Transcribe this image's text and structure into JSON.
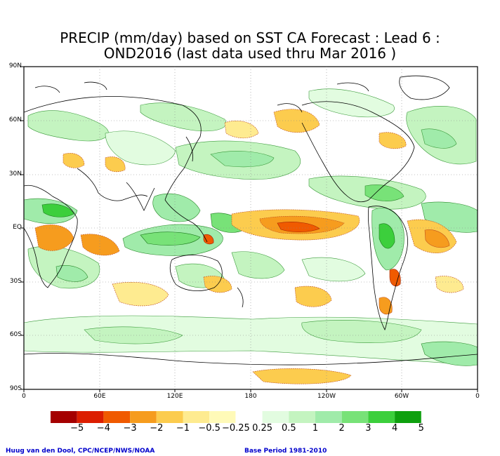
{
  "title": {
    "line1": "PRECIP (mm/day) based on SST CA Forecast : Lead 6 :",
    "line2": "OND2016 (last data used thru Mar 2016 )"
  },
  "map": {
    "lat_labels": [
      "90N",
      "60N",
      "30N",
      "EQ",
      "30S",
      "60S",
      "90S"
    ],
    "lon_labels": [
      "0",
      "60E",
      "120E",
      "180",
      "120W",
      "60W",
      "0"
    ]
  },
  "legend": {
    "labels": [
      "−5",
      "−4",
      "−3",
      "−2",
      "−1",
      "−0.5",
      "−0.25",
      "0.25",
      "0.5",
      "1",
      "2",
      "3",
      "4",
      "5"
    ],
    "colors": [
      "#a50000",
      "#dc1e00",
      "#f05a00",
      "#f69c1e",
      "#fccc4e",
      "#feeb90",
      "#fffab8",
      "#ffffff",
      "#e2fce0",
      "#c4f4c0",
      "#a0ebaa",
      "#78e278",
      "#3ccf3c",
      "#0ea00e"
    ]
  },
  "credits": {
    "left": "Huug van den Dool, CPC/NCEP/NWS/NOAA",
    "right": "Base Period 1981-2010"
  }
}
